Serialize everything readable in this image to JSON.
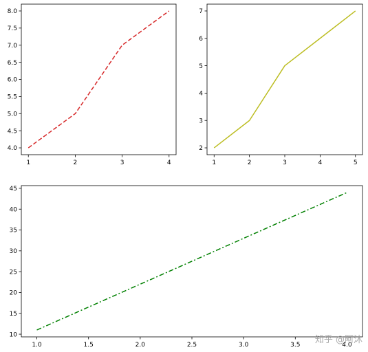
{
  "watermark": "知乎 @阿沐",
  "chart_data": [
    {
      "type": "line",
      "x": [
        1,
        2,
        3,
        4
      ],
      "series": [
        {
          "values": [
            4,
            5,
            7,
            8
          ],
          "color": "#d62728",
          "linestyle": "dashed"
        }
      ],
      "xlim": [
        0.85,
        4.15
      ],
      "ylim": [
        3.8,
        8.2
      ],
      "xticks": [
        1,
        2,
        3,
        4
      ],
      "yticks": [
        4.0,
        4.5,
        5.0,
        5.5,
        6.0,
        6.5,
        7.0,
        7.5,
        8.0
      ],
      "ytick_decimals": 1,
      "xtick_decimals": 0,
      "grid": false,
      "title": "",
      "xlabel": "",
      "ylabel": ""
    },
    {
      "type": "line",
      "x": [
        1,
        2,
        3,
        4,
        5
      ],
      "series": [
        {
          "values": [
            2,
            3,
            5,
            6,
            7
          ],
          "color": "#bcbd22",
          "linestyle": "solid"
        }
      ],
      "xlim": [
        0.8,
        5.2
      ],
      "ylim": [
        1.75,
        7.25
      ],
      "xticks": [
        1,
        2,
        3,
        4,
        5
      ],
      "yticks": [
        2,
        3,
        4,
        5,
        6,
        7
      ],
      "ytick_decimals": 0,
      "xtick_decimals": 0,
      "grid": false,
      "title": "",
      "xlabel": "",
      "ylabel": ""
    },
    {
      "type": "line",
      "x": [
        1,
        2,
        3,
        4
      ],
      "series": [
        {
          "values": [
            11,
            22,
            33,
            44
          ],
          "color": "#008000",
          "linestyle": "dashdot"
        }
      ],
      "xlim": [
        0.85,
        4.15
      ],
      "ylim": [
        9.35,
        45.65
      ],
      "xticks": [
        1.0,
        1.5,
        2.0,
        2.5,
        3.0,
        3.5,
        4.0
      ],
      "yticks": [
        10,
        15,
        20,
        25,
        30,
        35,
        40,
        45
      ],
      "ytick_decimals": 0,
      "xtick_decimals": 1,
      "grid": false,
      "title": "",
      "xlabel": "",
      "ylabel": ""
    }
  ]
}
